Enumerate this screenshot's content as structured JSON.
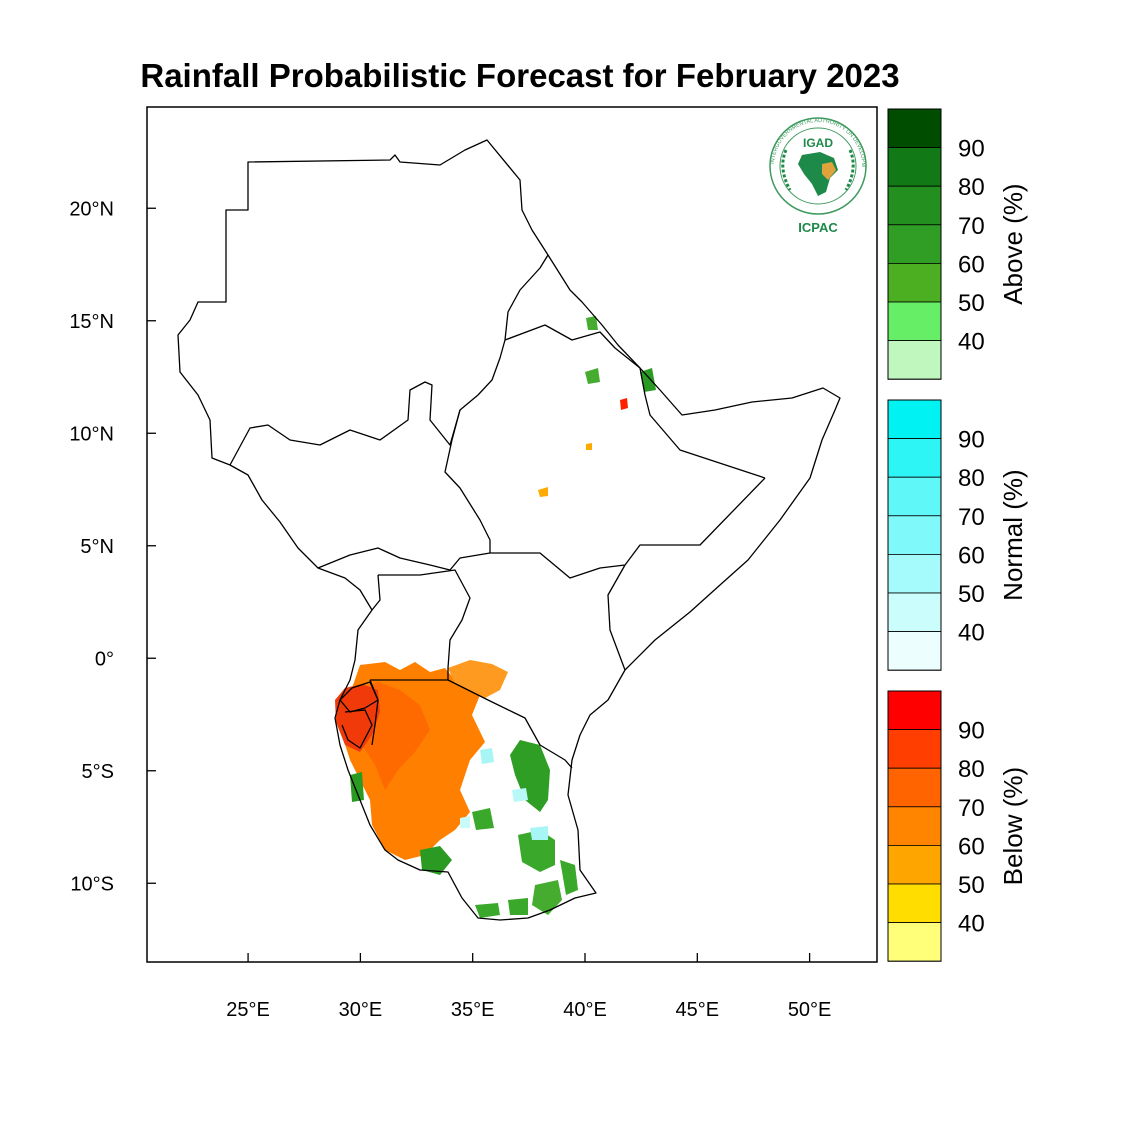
{
  "title": "Rainfall Probabilistic Forecast for February 2023",
  "logo": {
    "top_text": "IGAD",
    "bottom_text": "ICPAC",
    "ring_text": "INTERGOVERNMENTAL AUTHORITY ON DEVELOPMENT",
    "color": "#1e8a4a"
  },
  "map": {
    "lon_range": [
      20.5,
      53
    ],
    "lat_range": [
      -13.5,
      24.5
    ],
    "x_ticks": [
      {
        "value": 25,
        "label": "25°E"
      },
      {
        "value": 30,
        "label": "30°E"
      },
      {
        "value": 35,
        "label": "35°E"
      },
      {
        "value": 40,
        "label": "40°E"
      },
      {
        "value": 45,
        "label": "45°E"
      },
      {
        "value": 50,
        "label": "50°E"
      }
    ],
    "y_ticks": [
      {
        "value": 20,
        "label": "20°N"
      },
      {
        "value": 15,
        "label": "15°N"
      },
      {
        "value": 10,
        "label": "10°N"
      },
      {
        "value": 5,
        "label": "5°N"
      },
      {
        "value": 0,
        "label": "0°"
      },
      {
        "value": -5,
        "label": "5°S"
      },
      {
        "value": -10,
        "label": "10°S"
      }
    ]
  },
  "colorbars": [
    {
      "title": "Above (%)",
      "labels": [
        "90",
        "80",
        "70",
        "60",
        "50",
        "40"
      ],
      "colors": [
        "#004d00",
        "#117a17",
        "#238f1f",
        "#309e25",
        "#4caf22",
        "#66ee66",
        "#bff7bf"
      ]
    },
    {
      "title": "Normal (%)",
      "labels": [
        "90",
        "80",
        "70",
        "60",
        "50",
        "40"
      ],
      "colors": [
        "#00f2f2",
        "#2ef5f5",
        "#5ff7f7",
        "#7ff9f9",
        "#a5fbfb",
        "#ccfdfd",
        "#edfefe"
      ]
    },
    {
      "title": "Below (%)",
      "labels": [
        "90",
        "80",
        "70",
        "60",
        "50",
        "40"
      ],
      "colors": [
        "#ff0000",
        "#ff3e00",
        "#ff6400",
        "#ff8400",
        "#ffa500",
        "#ffdd00",
        "#ffff7a"
      ]
    }
  ]
}
